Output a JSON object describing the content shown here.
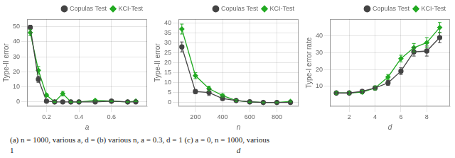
{
  "chart_data": [
    {
      "type": "line",
      "xlabel": "a",
      "ylabel": "Type-II error",
      "xlim": [
        0.08,
        0.82
      ],
      "ylim": [
        -3,
        55
      ],
      "xticks": [
        0.2,
        0.4,
        0.6
      ],
      "yticks": [
        0,
        10,
        20,
        30,
        40,
        50
      ],
      "grid": true,
      "legend": "upper right",
      "x": [
        0.1,
        0.15,
        0.2,
        0.25,
        0.3,
        0.35,
        0.4,
        0.5,
        0.6,
        0.7,
        0.75
      ],
      "series": [
        {
          "name": "Copulas Test",
          "color": "#444444",
          "marker": "circle",
          "values": [
            49.5,
            15.0,
            0.5,
            0.0,
            0.0,
            0.0,
            0.0,
            0.0,
            0.5,
            0.0,
            0.0
          ],
          "errors": [
            1.5,
            2.0,
            0.5,
            0.2,
            0.2,
            0.2,
            0.2,
            0.2,
            0.5,
            0.2,
            0.2
          ]
        },
        {
          "name": "KCI-Test",
          "color": "#22aa22",
          "marker": "diamond",
          "values": [
            46.0,
            21.0,
            4.5,
            0.0,
            5.5,
            0.0,
            0.0,
            1.0,
            0.5,
            0.0,
            0.5
          ],
          "errors": [
            2.0,
            2.5,
            1.0,
            0.3,
            1.5,
            0.3,
            0.3,
            0.5,
            0.3,
            0.2,
            0.3
          ]
        }
      ]
    },
    {
      "type": "line",
      "xlabel": "n",
      "ylabel": "Type-II error",
      "xlim": [
        75,
        960
      ],
      "ylim": [
        -2,
        42
      ],
      "xticks": [
        200,
        400,
        600,
        800
      ],
      "yticks": [
        0,
        5,
        10,
        15,
        20,
        25,
        30,
        35,
        40
      ],
      "grid": true,
      "legend": "upper right",
      "x": [
        100,
        200,
        300,
        400,
        500,
        600,
        700,
        800,
        900
      ],
      "series": [
        {
          "name": "Copulas Test",
          "color": "#444444",
          "marker": "circle",
          "values": [
            28.0,
            5.5,
            5.0,
            2.0,
            1.0,
            0.3,
            0.0,
            0.0,
            0.0
          ],
          "errors": [
            2.5,
            1.0,
            1.5,
            0.8,
            0.5,
            0.3,
            0.2,
            0.2,
            0.2
          ]
        },
        {
          "name": "KCI-Test",
          "color": "#22aa22",
          "marker": "diamond",
          "values": [
            37.0,
            13.5,
            7.0,
            3.5,
            1.0,
            0.3,
            0.0,
            0.0,
            0.5
          ],
          "errors": [
            2.5,
            1.5,
            1.2,
            0.8,
            0.5,
            0.3,
            0.2,
            0.2,
            0.3
          ]
        }
      ]
    },
    {
      "type": "line",
      "xlabel": "d",
      "ylabel": "Type-I error rate",
      "xlim": [
        0.5,
        9.8
      ],
      "ylim": [
        -2,
        50
      ],
      "xticks": [
        2,
        4,
        6,
        8
      ],
      "yticks": [
        10,
        20,
        30,
        40
      ],
      "grid": true,
      "legend": "upper right",
      "x": [
        1,
        2,
        3,
        4,
        5,
        6,
        7,
        8,
        9
      ],
      "series": [
        {
          "name": "Copulas Test",
          "color": "#444444",
          "marker": "circle",
          "values": [
            6.0,
            6.0,
            7.0,
            9.0,
            12.0,
            19.0,
            30.5,
            31.0,
            39.0
          ],
          "errors": [
            0.8,
            0.8,
            1.0,
            1.0,
            1.5,
            2.0,
            2.5,
            3.0,
            3.0
          ]
        },
        {
          "name": "KCI-Test",
          "color": "#22aa22",
          "marker": "diamond",
          "values": [
            6.0,
            6.0,
            6.5,
            9.0,
            15.5,
            26.5,
            33.0,
            36.0,
            45.0
          ],
          "errors": [
            0.8,
            0.8,
            1.0,
            1.2,
            1.5,
            2.0,
            2.5,
            3.0,
            3.0
          ]
        }
      ]
    }
  ],
  "annotations": [
    "(a) n = 1000, various a, d = (b) various n, a = 0.3, d = 1 (c) a = 0, n = 1000, various",
    "1",
    "d"
  ]
}
